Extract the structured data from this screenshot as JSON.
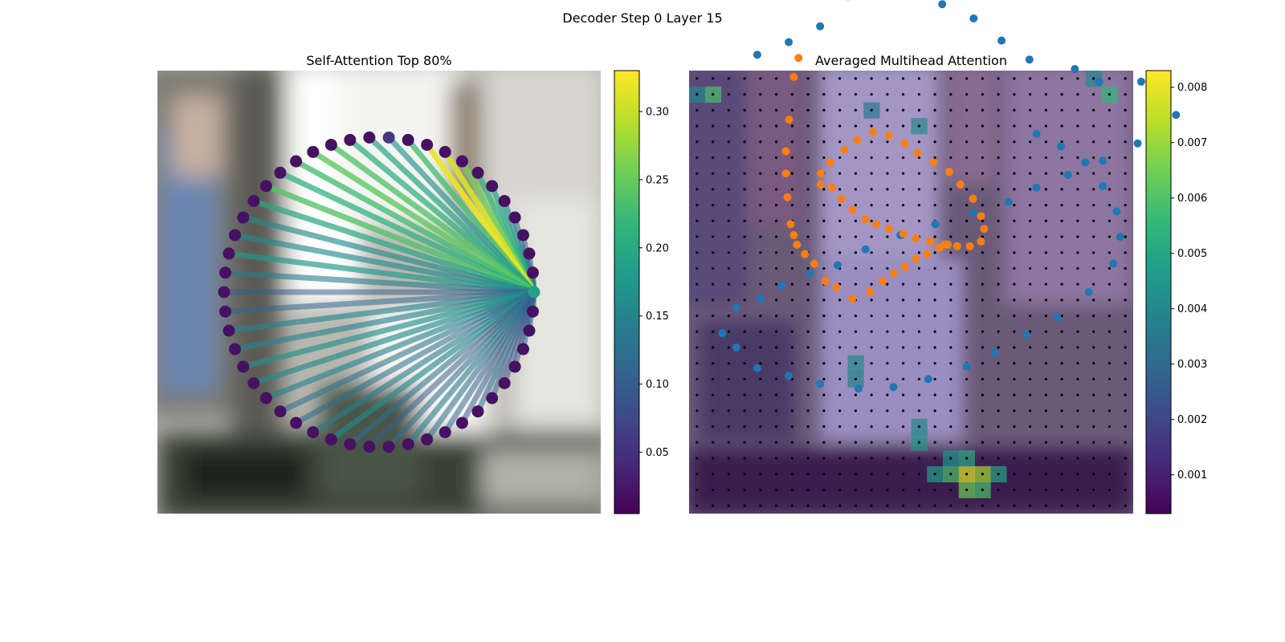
{
  "figure": {
    "suptitle": "Decoder Step 0 Layer 15",
    "left_title": "Self-Attention Top 80%",
    "right_title": "Averaged Multihead Attention"
  },
  "colors": {
    "viridis": [
      "#440154",
      "#482878",
      "#3e4989",
      "#31688e",
      "#26828e",
      "#1f9e89",
      "#35b779",
      "#6ece58",
      "#b5de2b",
      "#fde725"
    ],
    "blue_points": "#1f77b4",
    "orange_points": "#ff7f0e",
    "grid_dots": "#000000"
  },
  "chart_data": [
    {
      "type": "scatter",
      "panel": "Self-Attention Top 80%",
      "description_markers": "polygon of points arranged in a circle; lines from the selected point weighted by attention",
      "num_points": 50,
      "source_point_index": 0,
      "weights": [
        0.19,
        0.1,
        0.12,
        0.1,
        0.12,
        0.16,
        0.2,
        0.22,
        0.26,
        0.31,
        0.32,
        0.23,
        0.17,
        0.2,
        0.21,
        0.24,
        0.25,
        0.23,
        0.21,
        0.24,
        0.2,
        0.16,
        0.16,
        0.18,
        0.14,
        0.1,
        0.11,
        0.15,
        0.15,
        0.17,
        0.16,
        0.15,
        0.13,
        0.12,
        0.14,
        0.16,
        0.12,
        0.1,
        0.12,
        0.14,
        0.12,
        0.11,
        0.1,
        0.12,
        0.1,
        0.09,
        0.1,
        0.11,
        0.1,
        0.12
      ],
      "node_values": [
        0.19,
        0.02,
        0.02,
        0.02,
        0.02,
        0.02,
        0.02,
        0.02,
        0.02,
        0.02,
        0.02,
        0.02,
        0.06,
        0.02,
        0.02,
        0.02,
        0.02,
        0.02,
        0.02,
        0.02,
        0.02,
        0.02,
        0.02,
        0.02,
        0.02,
        0.02,
        0.02,
        0.02,
        0.02,
        0.02,
        0.02,
        0.02,
        0.02,
        0.02,
        0.02,
        0.02,
        0.02,
        0.02,
        0.02,
        0.02,
        0.02,
        0.02,
        0.02,
        0.02,
        0.02,
        0.02,
        0.02,
        0.02,
        0.02,
        0.02
      ],
      "colorbar": {
        "min": 0.005,
        "max": 0.33,
        "ticks": [
          "0.05",
          "0.10",
          "0.15",
          "0.20",
          "0.25",
          "0.30"
        ],
        "tick_values": [
          0.05,
          0.1,
          0.15,
          0.2,
          0.25,
          0.3
        ]
      }
    },
    {
      "type": "heatmap",
      "panel": "Averaged Multihead Attention",
      "rows": 28,
      "cols": 28,
      "colorbar": {
        "min": 0.0003,
        "max": 0.0083,
        "ticks": [
          "0.001",
          "0.002",
          "0.003",
          "0.004",
          "0.005",
          "0.006",
          "0.007",
          "0.008"
        ],
        "tick_values": [
          0.001,
          0.002,
          0.003,
          0.004,
          0.005,
          0.006,
          0.007,
          0.008
        ]
      },
      "hotspots": [
        {
          "row": 1,
          "col": 1,
          "value": 0.006
        },
        {
          "row": 1,
          "col": 26,
          "value": 0.0055
        },
        {
          "row": 0,
          "col": 25,
          "value": 0.004
        },
        {
          "row": 1,
          "col": 0,
          "value": 0.004
        },
        {
          "row": 25,
          "col": 17,
          "value": 0.008
        },
        {
          "row": 25,
          "col": 18,
          "value": 0.0072
        },
        {
          "row": 25,
          "col": 16,
          "value": 0.006
        },
        {
          "row": 26,
          "col": 17,
          "value": 0.0065
        },
        {
          "row": 26,
          "col": 18,
          "value": 0.006
        },
        {
          "row": 25,
          "col": 19,
          "value": 0.005
        },
        {
          "row": 25,
          "col": 15,
          "value": 0.0048
        },
        {
          "row": 24,
          "col": 17,
          "value": 0.0052
        },
        {
          "row": 24,
          "col": 16,
          "value": 0.0045
        },
        {
          "row": 23,
          "col": 14,
          "value": 0.0045
        },
        {
          "row": 22,
          "col": 14,
          "value": 0.004
        },
        {
          "row": 18,
          "col": 10,
          "value": 0.004
        },
        {
          "row": 19,
          "col": 10,
          "value": 0.0038
        },
        {
          "row": 3,
          "col": 14,
          "value": 0.004
        },
        {
          "row": 2,
          "col": 11,
          "value": 0.0035
        }
      ],
      "blue_points": [
        [
          12.3,
          5.0
        ],
        [
          13.2,
          5.8
        ],
        [
          14.1,
          6.8
        ],
        [
          14.9,
          8.7
        ],
        [
          15.8,
          9.3
        ],
        [
          16.7,
          9.0
        ],
        [
          17.6,
          8.2
        ],
        [
          18.5,
          7.3
        ],
        [
          19.3,
          5.9
        ],
        [
          20.1,
          4.7
        ],
        [
          21.4,
          4.1
        ],
        [
          22.1,
          3.3
        ],
        [
          23.3,
          3.3
        ],
        [
          24.0,
          2.6
        ],
        [
          24.3,
          1.2
        ],
        [
          23.8,
          0.2
        ],
        [
          23.2,
          -0.6
        ],
        [
          22.2,
          -1.7
        ],
        [
          21.2,
          -2.6
        ],
        [
          20.3,
          -3.4
        ],
        [
          19.5,
          -4.3
        ],
        [
          18.5,
          -5.0
        ],
        [
          17.4,
          -5.7
        ],
        [
          16.4,
          -6.4
        ],
        [
          15.4,
          -7.3
        ],
        [
          14.6,
          -8.3
        ],
        [
          13.8,
          -8.8
        ],
        [
          13.0,
          -9.6
        ],
        [
          12.4,
          -10.4
        ],
        [
          11.7,
          -11.0
        ],
        [
          11.3,
          -12.6
        ],
        [
          11.7,
          -13.5
        ],
        [
          12.3,
          -14.8
        ],
        [
          13.2,
          -15.3
        ],
        [
          14.1,
          -15.8
        ],
        [
          15.2,
          -16.1
        ],
        [
          16.2,
          -16.0
        ],
        [
          17.2,
          -15.5
        ],
        [
          18.3,
          -14.7
        ],
        [
          19.1,
          -13.8
        ],
        [
          20.0,
          -12.7
        ],
        [
          20.9,
          -11.6
        ],
        [
          21.8,
          -10.0
        ],
        [
          22.5,
          -8.2
        ],
        [
          22.7,
          -6.5
        ],
        [
          22.6,
          -4.9
        ],
        [
          22.2,
          -3.3
        ],
        [
          21.7,
          -1.8
        ],
        [
          21.0,
          -0.8
        ],
        [
          20.3,
          0.0
        ]
      ],
      "orange_points": [
        [
          12.3,
          -5.2
        ],
        [
          13.0,
          -5.4
        ],
        [
          13.6,
          -6.1
        ],
        [
          14.3,
          -6.8
        ],
        [
          15.1,
          -7.4
        ],
        [
          15.8,
          -7.7
        ],
        [
          16.6,
          -8.0
        ],
        [
          17.5,
          -8.3
        ],
        [
          18.3,
          -8.6
        ],
        [
          19.2,
          -8.8
        ],
        [
          20.1,
          -9.0
        ],
        [
          20.9,
          -9.1
        ],
        [
          21.7,
          -9.1
        ],
        [
          22.4,
          -8.8
        ],
        [
          22.6,
          -8.0
        ],
        [
          22.4,
          -7.2
        ],
        [
          21.9,
          -6.1
        ],
        [
          21.1,
          -5.2
        ],
        [
          20.4,
          -4.4
        ],
        [
          19.4,
          -3.8
        ],
        [
          18.4,
          -3.2
        ],
        [
          17.6,
          -2.6
        ],
        [
          16.6,
          -2.1
        ],
        [
          15.6,
          -1.9
        ],
        [
          14.6,
          -2.4
        ],
        [
          13.8,
          -3.0
        ],
        [
          12.9,
          -3.8
        ],
        [
          12.3,
          -4.5
        ],
        [
          10.9,
          2.8
        ],
        [
          10.6,
          1.6
        ],
        [
          10.3,
          -1.1
        ],
        [
          10.1,
          -3.1
        ],
        [
          10.1,
          -4.5
        ],
        [
          10.2,
          -6.0
        ],
        [
          10.4,
          -7.7
        ],
        [
          10.6,
          -8.4
        ],
        [
          10.8,
          -9.0
        ],
        [
          11.3,
          -9.6
        ],
        [
          11.9,
          -10.2
        ],
        [
          12.6,
          -11.3
        ],
        [
          13.3,
          -11.7
        ],
        [
          14.3,
          -12.4
        ],
        [
          15.4,
          -12.0
        ],
        [
          16.2,
          -11.3
        ],
        [
          16.9,
          -10.8
        ],
        [
          17.6,
          -10.4
        ],
        [
          18.3,
          -9.9
        ],
        [
          19.0,
          -9.6
        ],
        [
          19.8,
          -9.2
        ],
        [
          20.3,
          -9.0
        ]
      ]
    }
  ]
}
